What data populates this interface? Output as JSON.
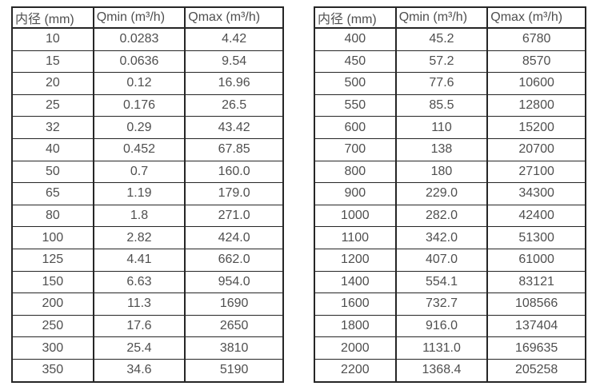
{
  "colors": {
    "text": "#4f4f4f",
    "border": "#262626",
    "background": "#ffffff"
  },
  "tables": [
    {
      "name": "flow-table-small-diameters",
      "headers": [
        "内径 (mm)",
        "Qmin (m³/h)",
        "Qmax (m³/h)"
      ],
      "rows": [
        [
          "10",
          "0.0283",
          "4.42"
        ],
        [
          "15",
          "0.0636",
          "9.54"
        ],
        [
          "20",
          "0.12",
          "16.96"
        ],
        [
          "25",
          "0.176",
          "26.5"
        ],
        [
          "32",
          "0.29",
          "43.42"
        ],
        [
          "40",
          "0.452",
          "67.85"
        ],
        [
          "50",
          "0.7",
          "160.0"
        ],
        [
          "65",
          "1.19",
          "179.0"
        ],
        [
          "80",
          "1.8",
          "271.0"
        ],
        [
          "100",
          "2.82",
          "424.0"
        ],
        [
          "125",
          "4.41",
          "662.0"
        ],
        [
          "150",
          "6.63",
          "954.0"
        ],
        [
          "200",
          "11.3",
          "1690"
        ],
        [
          "250",
          "17.6",
          "2650"
        ],
        [
          "300",
          "25.4",
          "3810"
        ],
        [
          "350",
          "34.6",
          "5190"
        ]
      ]
    },
    {
      "name": "flow-table-large-diameters",
      "headers": [
        "内径 (mm)",
        "Qmin (m³/h)",
        "Qmax (m³/h)"
      ],
      "rows": [
        [
          "400",
          "45.2",
          "6780"
        ],
        [
          "450",
          "57.2",
          "8570"
        ],
        [
          "500",
          "77.6",
          "10600"
        ],
        [
          "550",
          "85.5",
          "12800"
        ],
        [
          "600",
          "110",
          "15200"
        ],
        [
          "700",
          "138",
          "20700"
        ],
        [
          "800",
          "180",
          "27100"
        ],
        [
          "900",
          "229.0",
          "34300"
        ],
        [
          "1000",
          "282.0",
          "42400"
        ],
        [
          "1100",
          "342.0",
          "51300"
        ],
        [
          "1200",
          "407.0",
          "61000"
        ],
        [
          "1400",
          "554.1",
          "83121"
        ],
        [
          "1600",
          "732.7",
          "108566"
        ],
        [
          "1800",
          "916.0",
          "137404"
        ],
        [
          "2000",
          "1131.0",
          "169635"
        ],
        [
          "2200",
          "1368.4",
          "205258"
        ]
      ]
    }
  ]
}
